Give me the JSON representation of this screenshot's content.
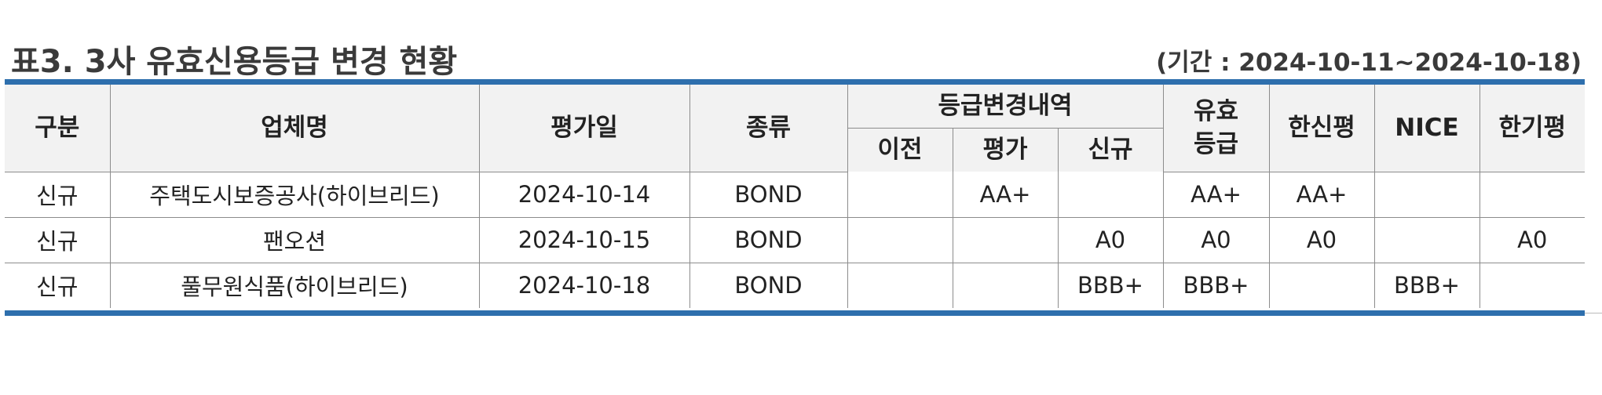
{
  "title": "표3. 3사 유효신용등급 변경 현황",
  "period": "(기간 : 2024-10-11~2024-10-18)",
  "header": {
    "category": "구분",
    "company": "업체명",
    "eval_date": "평가일",
    "type": "종류",
    "change_group": "등급변경내역",
    "prev": "이전",
    "eval": "평가",
    "new": "신규",
    "effective_line1": "유효",
    "effective_line2": "등급",
    "hanshin": "한신평",
    "nice": "NICE",
    "hangi": "한기평"
  },
  "rows": [
    {
      "category": "신규",
      "company": "주택도시보증공사(하이브리드)",
      "date": "2024-10-14",
      "type": "BOND",
      "prev": "",
      "eval": "AA+",
      "new": "",
      "effective": "AA+",
      "hanshin": "AA+",
      "nice": "",
      "hangi": ""
    },
    {
      "category": "신규",
      "company": "팬오션",
      "date": "2024-10-15",
      "type": "BOND",
      "prev": "",
      "eval": "",
      "new": "A0",
      "effective": "A0",
      "hanshin": "A0",
      "nice": "",
      "hangi": "A0"
    },
    {
      "category": "신규",
      "company": "풀무원식품(하이브리드)",
      "date": "2024-10-18",
      "type": "BOND",
      "prev": "",
      "eval": "",
      "new": "BBB+",
      "effective": "BBB+",
      "hanshin": "",
      "nice": "BBB+",
      "hangi": ""
    }
  ],
  "colors": {
    "accent_rule": "#2e6fad",
    "header_bg": "#f2f2f2",
    "grid_line": "#8c8c8c"
  }
}
